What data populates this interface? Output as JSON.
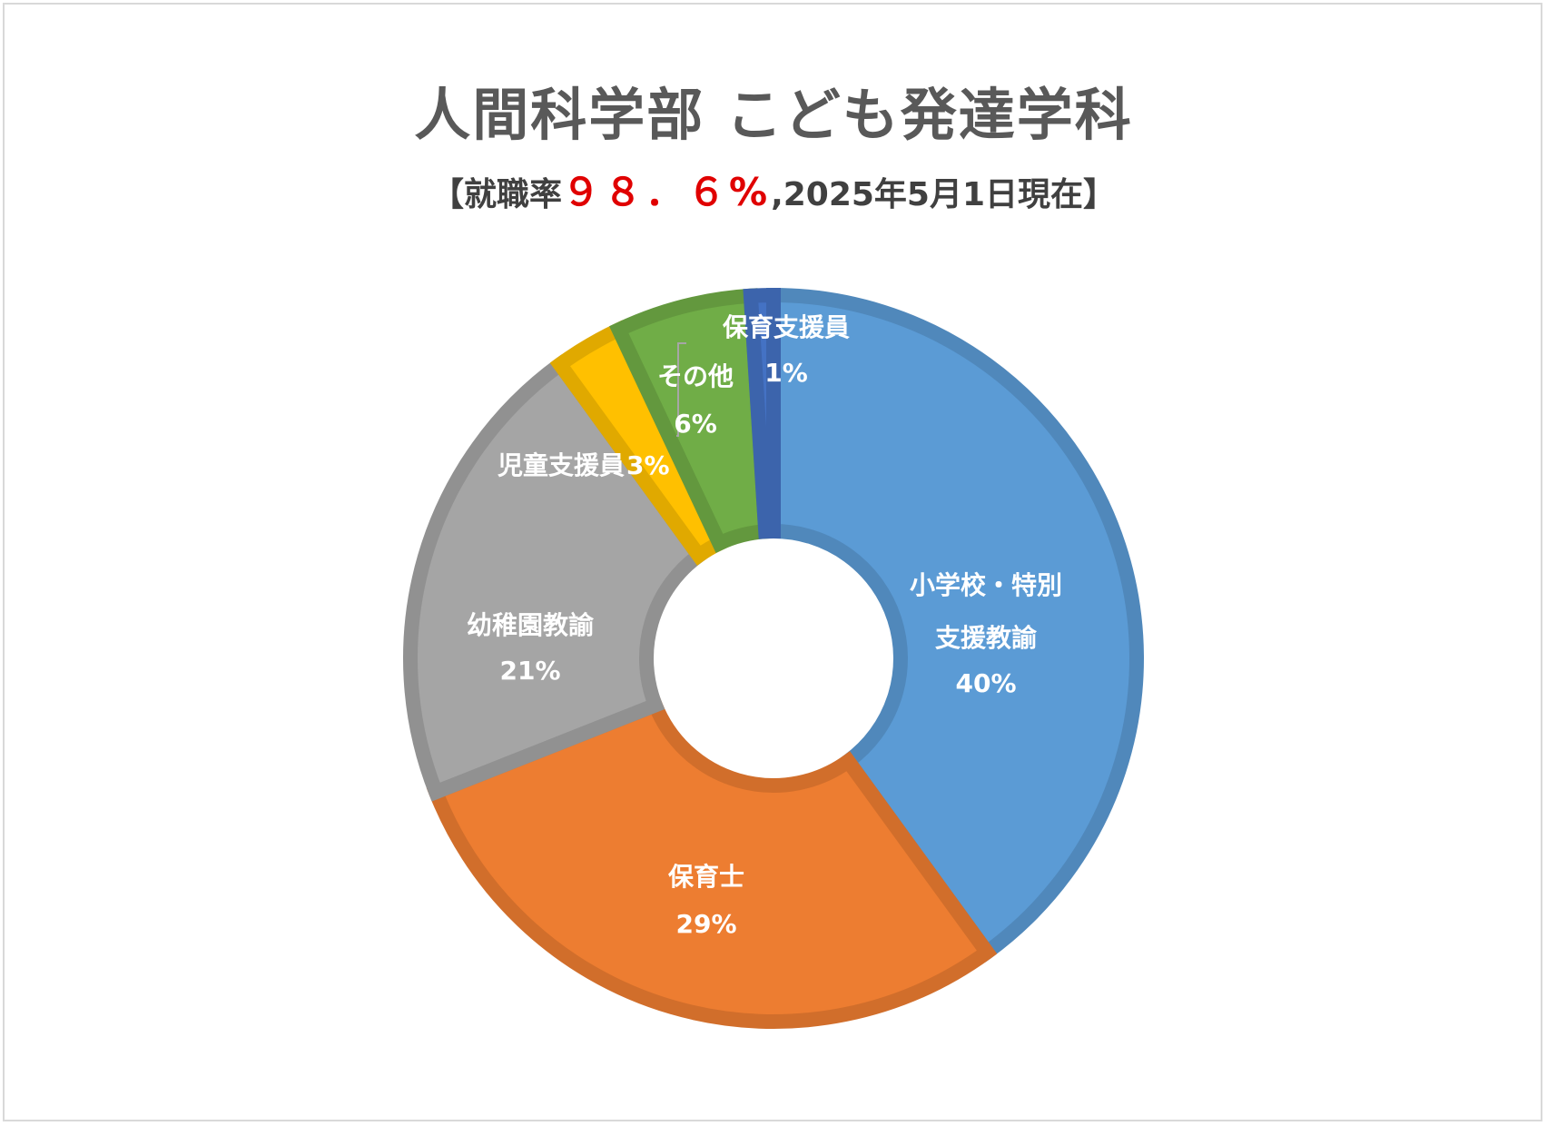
{
  "header": {
    "title": "人間科学部 こども発達学科",
    "subtitle_prefix": "【就職率",
    "subtitle_rate": "９８．６%",
    "subtitle_suffix": ",2025年5月1日現在】"
  },
  "chart_data": {
    "type": "pie",
    "variant": "donut",
    "legend": "none",
    "series": [
      {
        "categories": [
          "小学校・特別支援教諭",
          "保育士",
          "幼稚園教諭",
          "児童支援員",
          "保育支援員",
          "その他"
        ],
        "values": [
          40,
          29,
          21,
          3,
          1,
          6
        ],
        "labels": [
          "40%",
          "29%",
          "21%",
          "3%",
          "1%",
          "6%"
        ],
        "colors": [
          "#5b9bd5",
          "#ed7d31",
          "#a5a5a5",
          "#ffc000",
          "#4472c4",
          "#70ad47"
        ]
      }
    ],
    "label_text": {
      "s0a": "小学校・特別",
      "s0b": "支援教諭",
      "s1": "保育士",
      "s2": "幼稚園教諭",
      "s3": "児童支援員",
      "s4": "保育支援員",
      "s5": "その他"
    }
  }
}
